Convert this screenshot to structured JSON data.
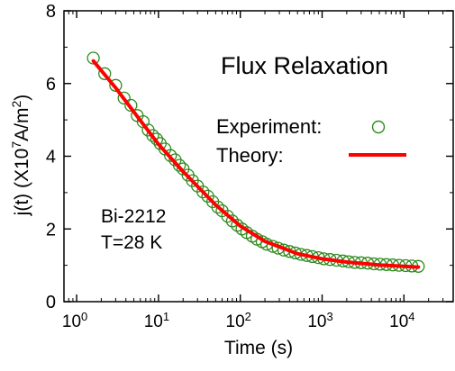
{
  "chart_data": {
    "type": "scatter",
    "title": "Flux Relaxation",
    "xlabel": "Time (s)",
    "ylabel": {
      "main": "j(t) (X10",
      "exp": "7",
      "unit": "A/m",
      "unit_exp": "2",
      "close": ")"
    },
    "x_scale": "log",
    "xlim": [
      0.7,
      40000
    ],
    "ylim": [
      0,
      8
    ],
    "grid": false,
    "x_ticks": [
      {
        "value": 1,
        "base": "10",
        "exp": "0"
      },
      {
        "value": 10,
        "base": "10",
        "exp": "1"
      },
      {
        "value": 100,
        "base": "10",
        "exp": "2"
      },
      {
        "value": 1000,
        "base": "10",
        "exp": "3"
      },
      {
        "value": 10000,
        "base": "10",
        "exp": "4"
      }
    ],
    "y_ticks": [
      0,
      2,
      4,
      6,
      8
    ],
    "annotation": [
      "Bi-2212",
      "T=28 K"
    ],
    "legend_position": "right",
    "series": [
      {
        "name": "Experiment:",
        "kind": "scatter",
        "marker": "open-circle",
        "color": "#2e8b1e",
        "x": [
          1.6,
          2.2,
          3.0,
          3.8,
          4.6,
          5.5,
          6.5,
          7.5,
          8.5,
          9.5,
          10.5,
          12,
          14,
          16,
          18,
          20,
          23,
          26,
          30,
          35,
          40,
          46,
          53,
          60,
          70,
          80,
          92,
          105,
          120,
          140,
          160,
          185,
          210,
          250,
          290,
          340,
          400,
          470,
          550,
          650,
          760,
          900,
          1050,
          1250,
          1500,
          1800,
          2100,
          2500,
          3000,
          3600,
          4300,
          5100,
          6100,
          7300,
          8700,
          10500,
          12500,
          15000
        ],
        "y": [
          6.7,
          6.27,
          5.95,
          5.6,
          5.4,
          5.12,
          4.95,
          4.72,
          4.57,
          4.47,
          4.35,
          4.2,
          4.02,
          3.9,
          3.75,
          3.65,
          3.48,
          3.33,
          3.18,
          3.02,
          2.9,
          2.75,
          2.6,
          2.5,
          2.35,
          2.22,
          2.1,
          2.0,
          1.9,
          1.8,
          1.72,
          1.65,
          1.58,
          1.52,
          1.47,
          1.42,
          1.38,
          1.34,
          1.3,
          1.27,
          1.24,
          1.21,
          1.18,
          1.16,
          1.14,
          1.12,
          1.1,
          1.08,
          1.07,
          1.06,
          1.04,
          1.03,
          1.02,
          1.01,
          1.0,
          0.99,
          0.98,
          0.97
        ]
      },
      {
        "name": "Theory:",
        "kind": "line",
        "color": "#ff0000",
        "x": [
          1.6,
          3,
          5,
          10,
          20,
          50,
          100,
          200,
          500,
          1000,
          2000,
          5000,
          10000,
          15000
        ],
        "y": [
          6.62,
          5.88,
          5.22,
          4.33,
          3.58,
          2.66,
          2.08,
          1.66,
          1.32,
          1.18,
          1.09,
          1.01,
          0.97,
          0.95
        ]
      }
    ]
  }
}
